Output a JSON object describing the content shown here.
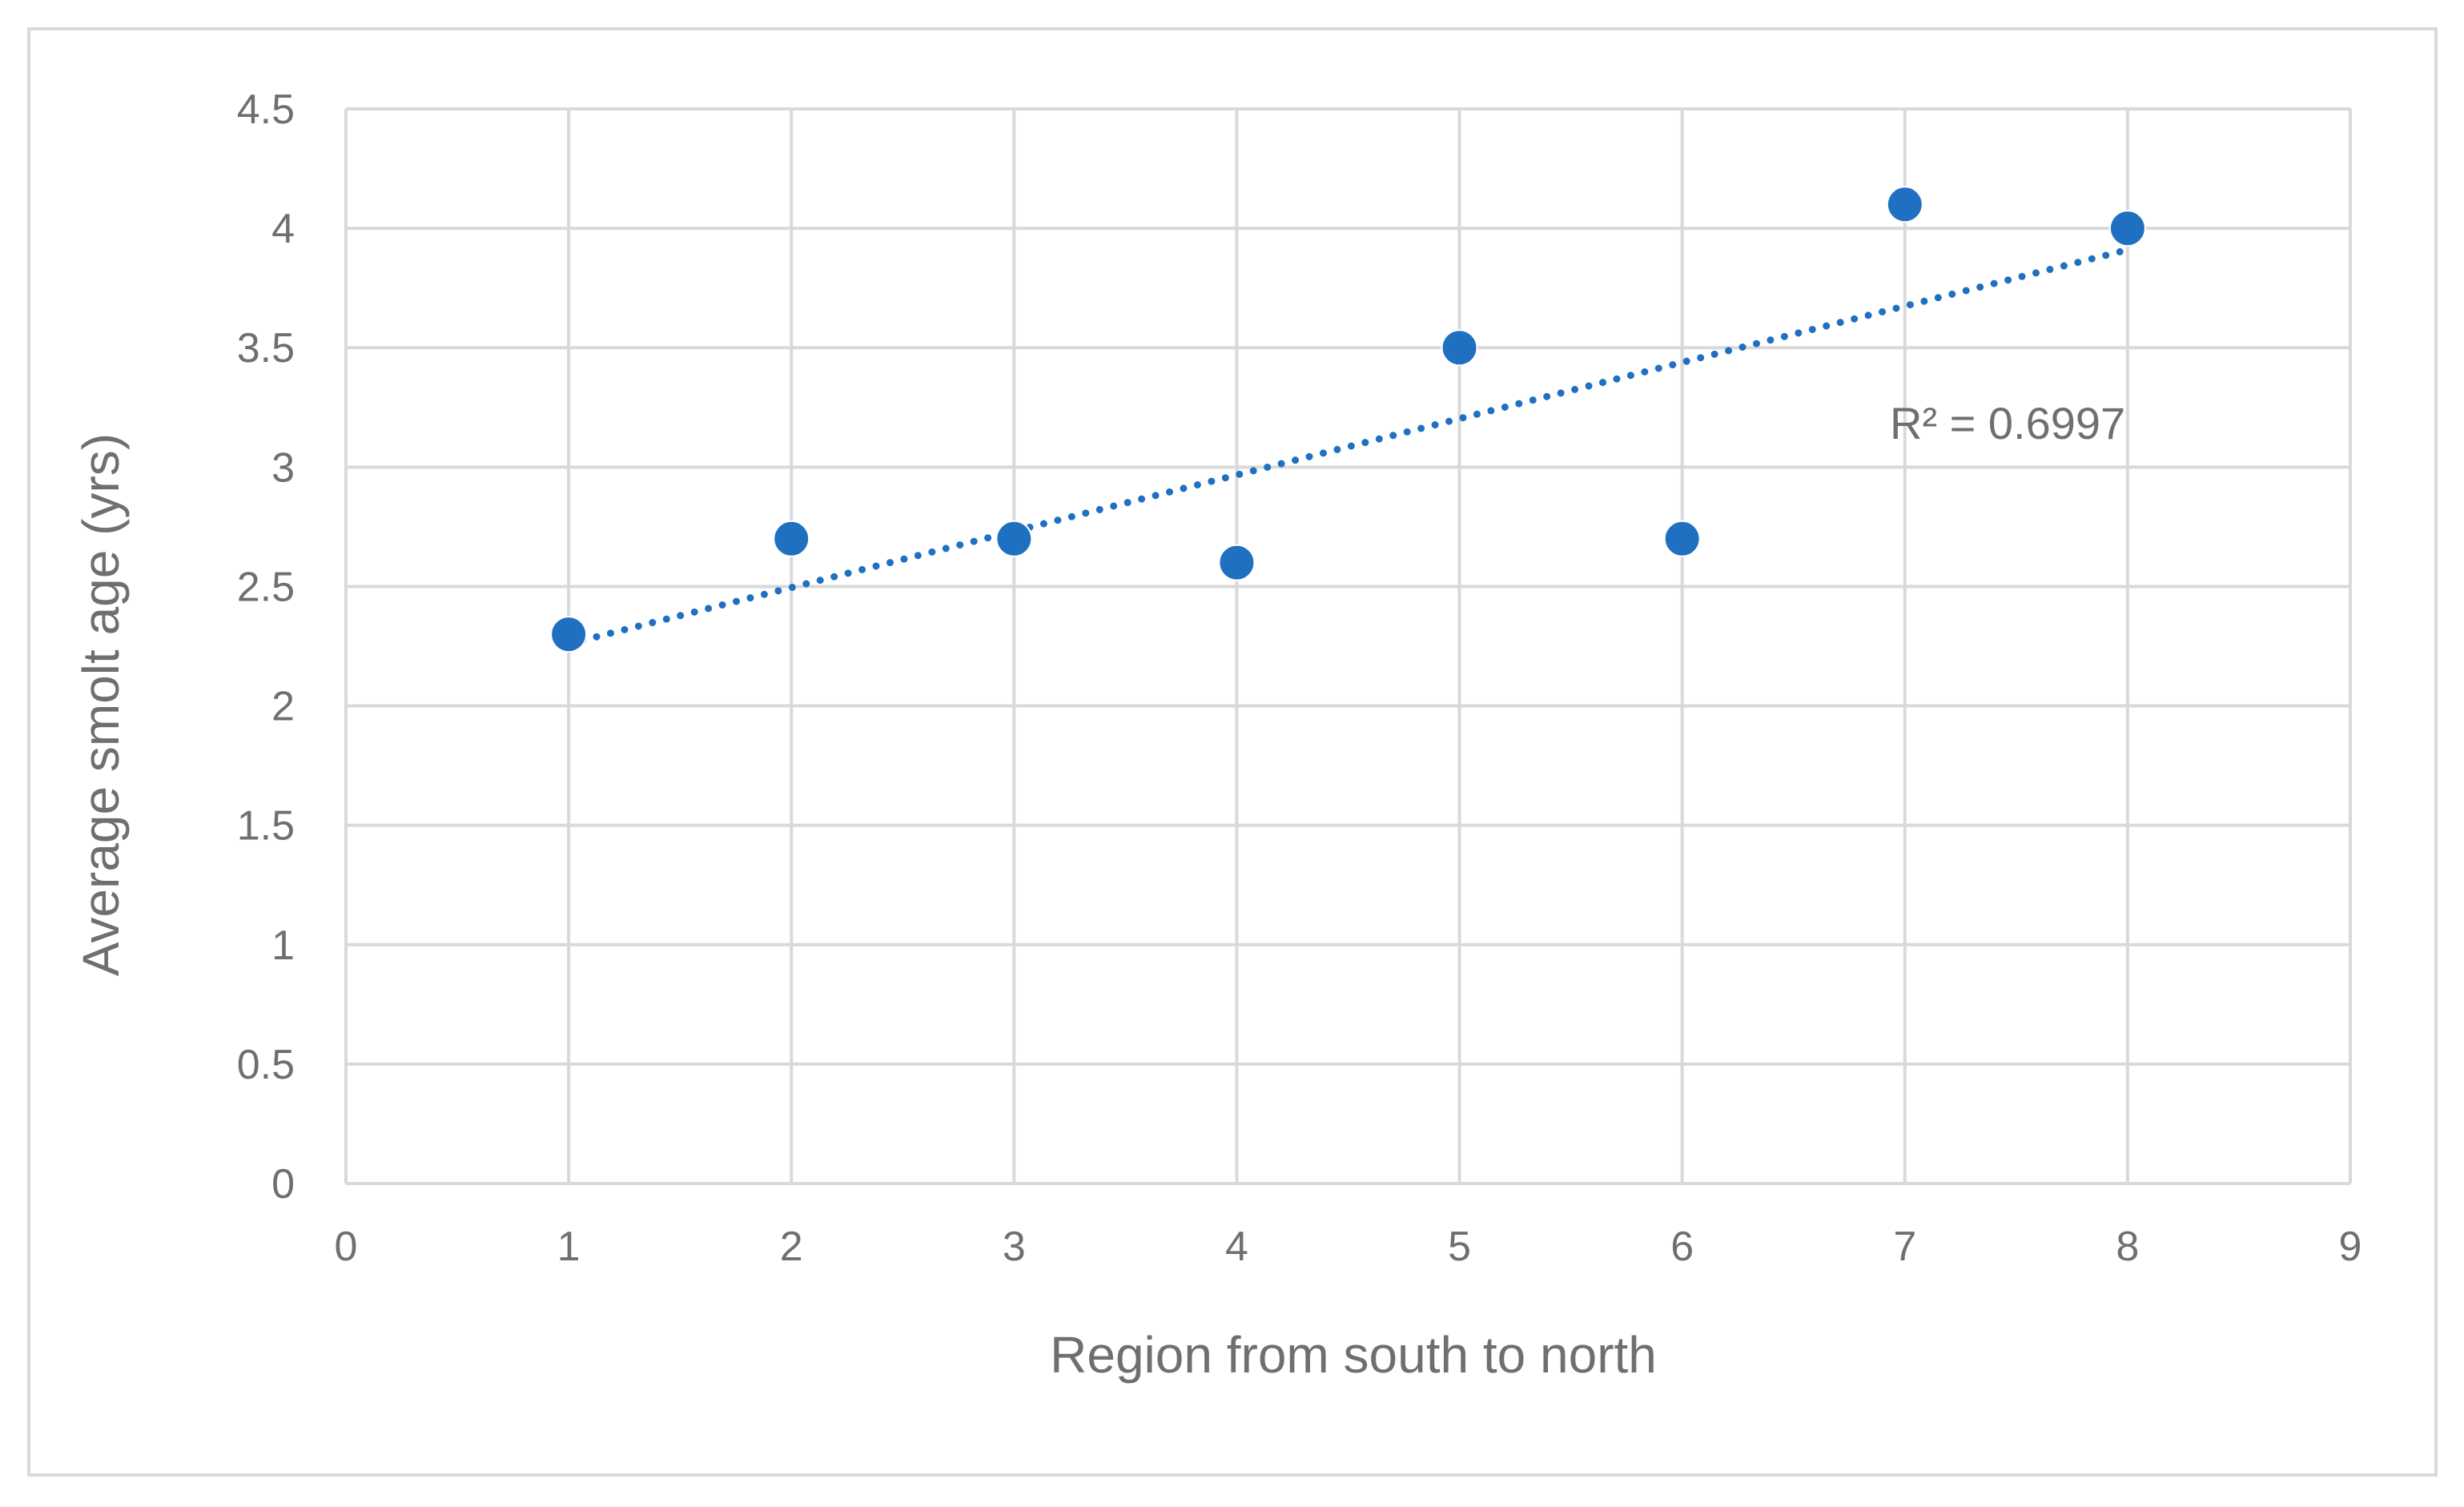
{
  "chart_data": {
    "type": "scatter",
    "title": "",
    "xlabel": "Region from south to north",
    "ylabel": "Average smolt age (yrs)",
    "xlim": [
      0,
      9
    ],
    "ylim": [
      0,
      4.5
    ],
    "xticks": [
      0,
      1,
      2,
      3,
      4,
      5,
      6,
      7,
      8,
      9
    ],
    "yticks": [
      0,
      0.5,
      1,
      1.5,
      2,
      2.5,
      3,
      3.5,
      4,
      4.5
    ],
    "xtick_labels": [
      "0",
      "1",
      "2",
      "3",
      "4",
      "5",
      "6",
      "7",
      "8",
      "9"
    ],
    "ytick_labels": [
      "0",
      "0.5",
      "1",
      "1.5",
      "2",
      "2.5",
      "3",
      "3.5",
      "4",
      "4.5"
    ],
    "grid": true,
    "legend": "none",
    "series": [
      {
        "x": [
          1,
          2,
          3,
          4,
          5,
          6,
          7,
          8
        ],
        "y": [
          2.3,
          2.7,
          2.7,
          2.6,
          3.5,
          2.7,
          4.1,
          4.0
        ],
        "color": "#1f70c1",
        "marker": "circle"
      }
    ],
    "trendline": {
      "type": "linear",
      "style": "dotted",
      "color": "#1f70c1",
      "x_range": [
        1,
        8
      ],
      "y_range": [
        2.26,
        3.91
      ],
      "label": "R² = 0.6997"
    }
  }
}
